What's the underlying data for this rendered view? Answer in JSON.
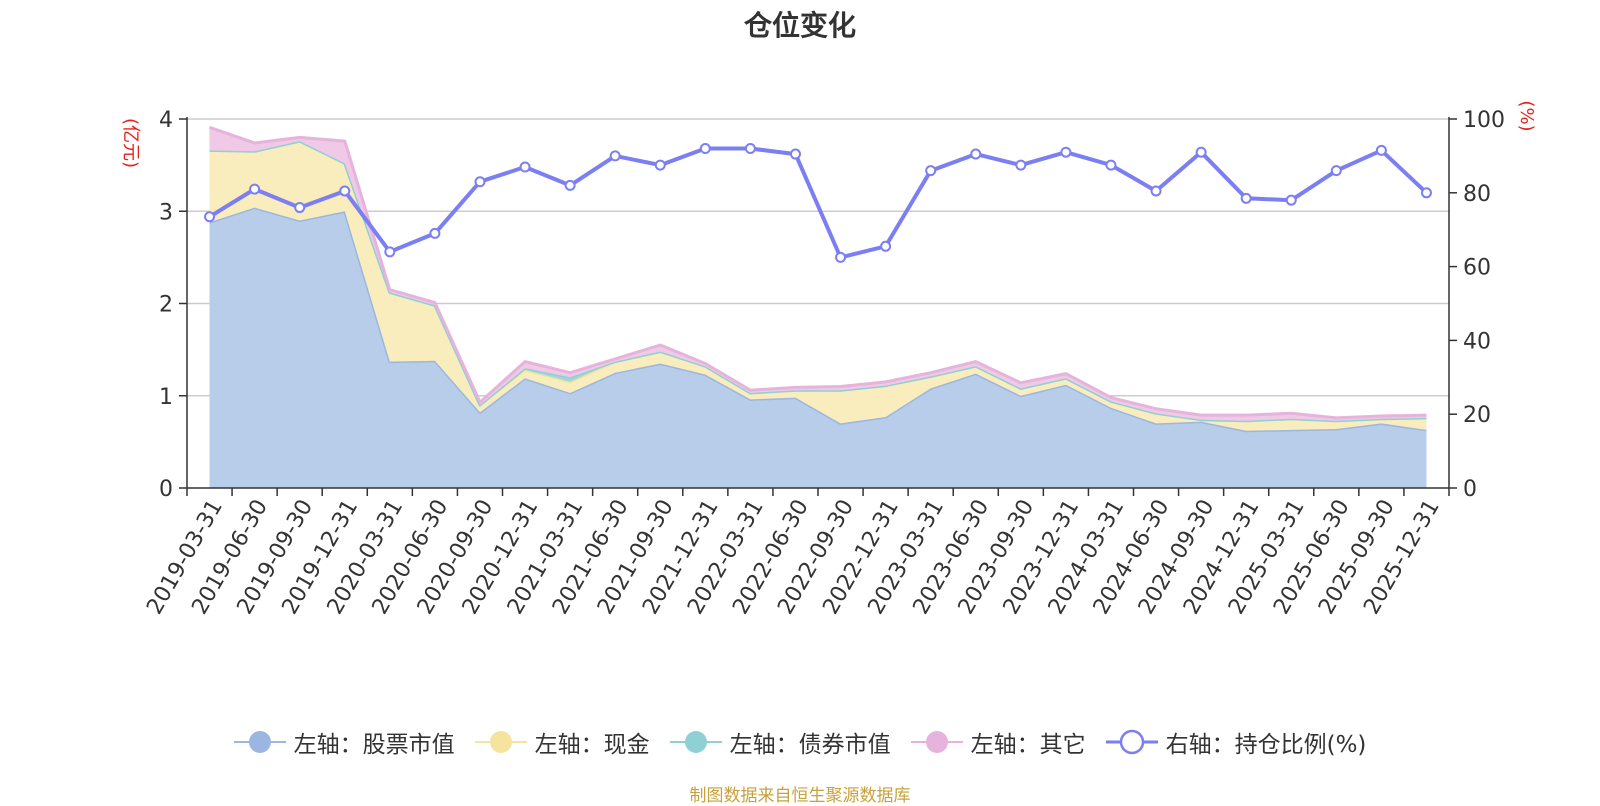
{
  "chart_data": {
    "type": "area",
    "title": "仓位变化",
    "y_left_label": "(亿元)",
    "y_right_label": "(%)",
    "y_left_range": [
      0,
      4
    ],
    "y_left_ticks": [
      "0",
      "1",
      "2",
      "3",
      "4"
    ],
    "y_right_range": [
      0,
      100
    ],
    "y_right_ticks": [
      "0",
      "20",
      "40",
      "60",
      "80",
      "100"
    ],
    "categories": [
      "2019-03-31",
      "2019-06-30",
      "2019-09-30",
      "2019-12-31",
      "2020-03-31",
      "2020-06-30",
      "2020-09-30",
      "2020-12-31",
      "2021-03-31",
      "2021-06-30",
      "2021-09-30",
      "2021-12-31",
      "2022-03-31",
      "2022-06-30",
      "2022-09-30",
      "2022-12-31",
      "2023-03-31",
      "2023-06-30",
      "2023-09-30",
      "2023-12-31",
      "2024-03-31",
      "2024-06-30",
      "2024-09-30",
      "2024-12-31",
      "2025-03-31",
      "2025-06-30",
      "2025-09-30",
      "2025-12-31"
    ],
    "series": [
      {
        "name": "左轴：股票市值",
        "axis": "left",
        "kind": "stacked-area",
        "color": "#9bb6e0",
        "fill": "#b8cdea",
        "values": [
          2.88,
          3.04,
          2.9,
          3.0,
          1.37,
          1.38,
          0.82,
          1.19,
          1.03,
          1.25,
          1.35,
          1.23,
          0.96,
          0.98,
          0.7,
          0.77,
          1.08,
          1.24,
          1.0,
          1.12,
          0.87,
          0.7,
          0.72,
          0.62,
          0.63,
          0.64,
          0.7,
          0.63
        ]
      },
      {
        "name": "左轴：现金",
        "axis": "left",
        "kind": "stacked-area",
        "color": "#f5e49e",
        "fill": "#faedbd",
        "values": [
          0.78,
          0.61,
          0.86,
          0.52,
          0.75,
          0.6,
          0.08,
          0.09,
          0.12,
          0.12,
          0.13,
          0.09,
          0.07,
          0.08,
          0.36,
          0.34,
          0.13,
          0.08,
          0.08,
          0.07,
          0.07,
          0.11,
          0.02,
          0.11,
          0.12,
          0.09,
          0.05,
          0.13
        ]
      },
      {
        "name": "左轴：债券市值",
        "axis": "left",
        "kind": "stacked-area",
        "color": "#8fd0d4",
        "fill": "#9fd8da",
        "values": [
          0.0,
          0.0,
          0.0,
          0.0,
          0.0,
          0.0,
          0.0,
          0.02,
          0.05,
          0.0,
          0.0,
          0.0,
          0.0,
          0.0,
          0.0,
          0.0,
          0.0,
          0.0,
          0.0,
          0.0,
          0.0,
          0.0,
          0.0,
          0.0,
          0.0,
          0.0,
          0.0,
          0.0
        ]
      },
      {
        "name": "左轴：其它",
        "axis": "left",
        "kind": "stacked-area",
        "color": "#e6b3dc",
        "fill": "#efc9e6",
        "values": [
          0.25,
          0.09,
          0.04,
          0.24,
          0.03,
          0.03,
          0.03,
          0.07,
          0.05,
          0.03,
          0.07,
          0.03,
          0.03,
          0.03,
          0.04,
          0.04,
          0.04,
          0.05,
          0.06,
          0.05,
          0.04,
          0.05,
          0.05,
          0.06,
          0.06,
          0.03,
          0.03,
          0.03
        ]
      },
      {
        "name": "右轴：持仓比例(%)",
        "axis": "right",
        "kind": "line",
        "color": "#7b7ff2",
        "values": [
          73.5,
          81.0,
          76.0,
          80.5,
          64.0,
          69.0,
          83.0,
          87.0,
          82.0,
          90.0,
          87.5,
          92.0,
          92.0,
          90.5,
          62.5,
          65.5,
          86.0,
          90.5,
          87.5,
          91.0,
          87.5,
          80.5,
          91.0,
          78.5,
          78.0,
          86.0,
          91.5,
          80.0
        ]
      }
    ]
  },
  "legend": [
    {
      "label": "左轴：股票市值",
      "color": "#9bb6e0",
      "style": "filled"
    },
    {
      "label": "左轴：现金",
      "color": "#f5e49e",
      "style": "filled"
    },
    {
      "label": "左轴：债券市值",
      "color": "#8fd0d4",
      "style": "filled"
    },
    {
      "label": "左轴：其它",
      "color": "#e6b3dc",
      "style": "filled"
    },
    {
      "label": "右轴：持仓比例(%)",
      "color": "#7b7ff2",
      "style": "hollow"
    }
  ],
  "source_note": "制图数据来自恒生聚源数据库"
}
